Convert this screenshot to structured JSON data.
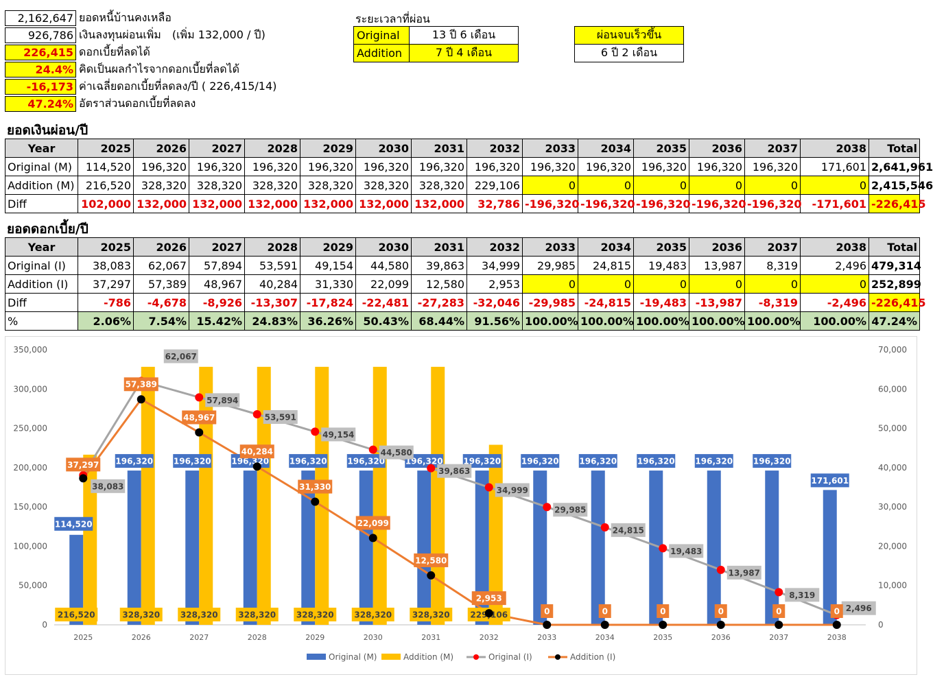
{
  "summary": [
    {
      "value": "2,162,647",
      "label": "ยอดหนี้บ้านคงเหลือ",
      "note": "",
      "highlight": false
    },
    {
      "value": "926,786",
      "label": "เงินลงทุนผ่อนเพิ่ม",
      "note": "(เพิ่ม 132,000 / ปี)",
      "highlight": false
    },
    {
      "value": "226,415",
      "label": "ดอกเบี้ยที่ลดได้",
      "note": "",
      "highlight": true
    },
    {
      "value": "24.4%",
      "label": "คิดเป็นผลกำไรจากดอกเบี้ยที่ลดได้",
      "note": "",
      "highlight": true
    },
    {
      "value": "-16,173",
      "label": "ค่าเฉลี่ยดอกเบี้ยที่ลดลง/ปี ( 226,415/14)",
      "note": "",
      "highlight": true
    },
    {
      "value": "47.24%",
      "label": "อัตราส่วนดอกเบี้ยที่ลดลง",
      "note": "",
      "highlight": true
    }
  ],
  "period": {
    "title": "ระยะเวลาที่ผ่อน",
    "rows": [
      {
        "label": "Original",
        "value": "13 ปี 6 เดือน"
      },
      {
        "label": "Addition",
        "value": "7 ปี 4 เดือน"
      }
    ]
  },
  "faster": {
    "title": "ผ่อนจบเร็วขึ้น",
    "value": "6 ปี 2 เดือน"
  },
  "payments": {
    "title": "ยอดเงินผ่อน/ปี",
    "header": [
      "Year",
      "2025",
      "2026",
      "2027",
      "2028",
      "2029",
      "2030",
      "2031",
      "2032",
      "2033",
      "2034",
      "2035",
      "2036",
      "2037",
      "2038",
      "Total"
    ],
    "rows": [
      {
        "label": "Original (M)",
        "values": [
          "114,520",
          "196,320",
          "196,320",
          "196,320",
          "196,320",
          "196,320",
          "196,320",
          "196,320",
          "196,320",
          "196,320",
          "196,320",
          "196,320",
          "196,320",
          "171,601",
          "2,641,961"
        ]
      },
      {
        "label": "Addition (M)",
        "values": [
          "216,520",
          "328,320",
          "328,320",
          "328,320",
          "328,320",
          "328,320",
          "328,320",
          "229,106",
          "0",
          "0",
          "0",
          "0",
          "0",
          "0",
          "2,415,546"
        ]
      },
      {
        "label": "Diff",
        "values": [
          "102,000",
          "132,000",
          "132,000",
          "132,000",
          "132,000",
          "132,000",
          "132,000",
          "32,786",
          "-196,320",
          "-196,320",
          "-196,320",
          "-196,320",
          "-196,320",
          "-171,601",
          "-226,415"
        ]
      }
    ]
  },
  "interest": {
    "title": "ยอดดอกเบี้ย/ปี",
    "header": [
      "Year",
      "2025",
      "2026",
      "2027",
      "2028",
      "2029",
      "2030",
      "2031",
      "2032",
      "2033",
      "2034",
      "2035",
      "2036",
      "2037",
      "2038",
      "Total"
    ],
    "rows": [
      {
        "label": "Original (I)",
        "values": [
          "38,083",
          "62,067",
          "57,894",
          "53,591",
          "49,154",
          "44,580",
          "39,863",
          "34,999",
          "29,985",
          "24,815",
          "19,483",
          "13,987",
          "8,319",
          "2,496",
          "479,314"
        ]
      },
      {
        "label": "Addition (I)",
        "values": [
          "37,297",
          "57,389",
          "48,967",
          "40,284",
          "31,330",
          "22,099",
          "12,580",
          "2,953",
          "0",
          "0",
          "0",
          "0",
          "0",
          "0",
          "252,899"
        ]
      },
      {
        "label": "Diff",
        "values": [
          "-786",
          "-4,678",
          "-8,926",
          "-13,307",
          "-17,824",
          "-22,481",
          "-27,283",
          "-32,046",
          "-29,985",
          "-24,815",
          "-19,483",
          "-13,987",
          "-8,319",
          "-2,496",
          "-226,415"
        ]
      },
      {
        "label": "%",
        "values": [
          "2.06%",
          "7.54%",
          "15.42%",
          "24.83%",
          "36.26%",
          "50.43%",
          "68.44%",
          "91.56%",
          "100.00%",
          "100.00%",
          "100.00%",
          "100.00%",
          "100.00%",
          "100.00%",
          "47.24%"
        ]
      }
    ]
  },
  "chart_data": {
    "type": "bar",
    "categories": [
      "2025",
      "2026",
      "2027",
      "2028",
      "2029",
      "2030",
      "2031",
      "2032",
      "2033",
      "2034",
      "2035",
      "2036",
      "2037",
      "2038"
    ],
    "series": [
      {
        "name": "Original (M)",
        "type": "bar",
        "axis": "left",
        "color": "#4472c4",
        "values": [
          114520,
          196320,
          196320,
          196320,
          196320,
          196320,
          196320,
          196320,
          196320,
          196320,
          196320,
          196320,
          196320,
          171601
        ]
      },
      {
        "name": "Addition (M)",
        "type": "bar",
        "axis": "left",
        "color": "#ffc000",
        "values": [
          216520,
          328320,
          328320,
          328320,
          328320,
          328320,
          328320,
          229106,
          0,
          0,
          0,
          0,
          0,
          0
        ]
      },
      {
        "name": "Original (I)",
        "type": "line",
        "axis": "right",
        "color": "#a5a5a5",
        "marker": "#ff0000",
        "values": [
          38083,
          62067,
          57894,
          53591,
          49154,
          44580,
          39863,
          34999,
          29985,
          24815,
          19483,
          13987,
          8319,
          2496
        ]
      },
      {
        "name": "Addition (I)",
        "type": "line",
        "axis": "right",
        "color": "#ed7d31",
        "marker": "#000000",
        "values": [
          37297,
          57389,
          48967,
          40284,
          31330,
          22099,
          12580,
          2953,
          0,
          0,
          0,
          0,
          0,
          0
        ]
      }
    ],
    "ylim": [
      0,
      350000
    ],
    "y2lim": [
      0,
      70000
    ],
    "yticks": [
      "0",
      "50,000",
      "100,000",
      "150,000",
      "200,000",
      "250,000",
      "300,000",
      "350,000"
    ],
    "y2ticks": [
      "0",
      "10,000",
      "20,000",
      "30,000",
      "40,000",
      "50,000",
      "60,000",
      "70,000"
    ],
    "legend": "bottom",
    "grid": false
  }
}
